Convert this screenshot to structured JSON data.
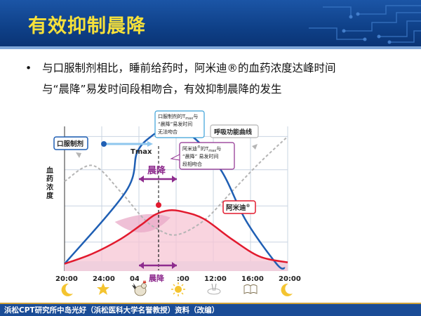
{
  "header": {
    "title": "有效抑制晨降"
  },
  "bullet": {
    "line1": "与口服制剂相比，睡前给药时，阿米迪®的血药浓度达峰时间",
    "line2": "与“晨降”易发时间段相吻合，有效抑制晨降的发生"
  },
  "chart_data": {
    "type": "line",
    "title": "",
    "ylabel": "血药浓度",
    "x_ticks": [
      "20:00",
      "24:00",
      "04:00",
      "08:00",
      "12:00",
      "16:00",
      "20:00"
    ],
    "series": [
      {
        "name": "口服制剂",
        "color": "#1f5fb4",
        "x": [
          0,
          2.2,
          2.6,
          3.1,
          3.5,
          4.5,
          5.6,
          6.5,
          7.6,
          7.9
        ],
        "y": [
          0.05,
          0.55,
          0.82,
          0.93,
          0.96,
          0.94,
          0.7,
          0.35,
          0.05,
          0.02
        ]
      },
      {
        "name": "阿米迪®",
        "color": "#e21a2e",
        "x": [
          0,
          4,
          8,
          11,
          13,
          15,
          17,
          20,
          24,
          28,
          32
        ],
        "y": [
          0.05,
          0.12,
          0.22,
          0.32,
          0.39,
          0.42,
          0.41,
          0.36,
          0.22,
          0.1,
          0.06
        ]
      },
      {
        "name": "呼吸功能曲线",
        "color": "#b0b0b0",
        "x": [
          0,
          4,
          8,
          11,
          13,
          16,
          20,
          24,
          28,
          32
        ],
        "y": [
          0.62,
          0.73,
          0.55,
          0.38,
          0.3,
          0.25,
          0.35,
          0.55,
          0.75,
          0.93
        ]
      }
    ],
    "annotations": {
      "oral_label": "口服制剂",
      "tmax_label": "Tmax",
      "chenjiang": "晨降",
      "chenjiang_axis": "晨降",
      "box_oral_title": "口服制剂的T",
      "box_oral_sub": "max",
      "box_oral_suffix": "与",
      "box_oral_line2": "“晨降”易发时间",
      "box_oral_line3": "无法吻合",
      "box_amidi_title": "阿米迪",
      "box_amidi_sup": "®",
      "box_amidi_mid": "的T",
      "box_amidi_sub": "max",
      "box_amidi_suffix": "与",
      "box_amidi_line2": "“晨降” 易发时间",
      "box_amidi_line3": "段相吻合",
      "breath_label": "呼吸功能曲线",
      "amidi_label": "阿米迪",
      "amidi_sup": "®"
    },
    "bottom_icons": [
      "moon-icon",
      "star-icon",
      "rooster-icon",
      "sun-icon",
      "meal-icon",
      "book-icon",
      "moon-icon"
    ],
    "grid": true
  },
  "footer": {
    "credit": "浜松CPT研究所中岛光好（浜松医科大学名誉教授）资料（改编）"
  },
  "colors": {
    "header_bg": "#0e3f86",
    "title_text": "#f7e13a",
    "oral": "#1f5fb4",
    "amidi": "#e21a2e",
    "morning_dip": "#8e2c8e",
    "footer_bg": "#1a4c96"
  }
}
